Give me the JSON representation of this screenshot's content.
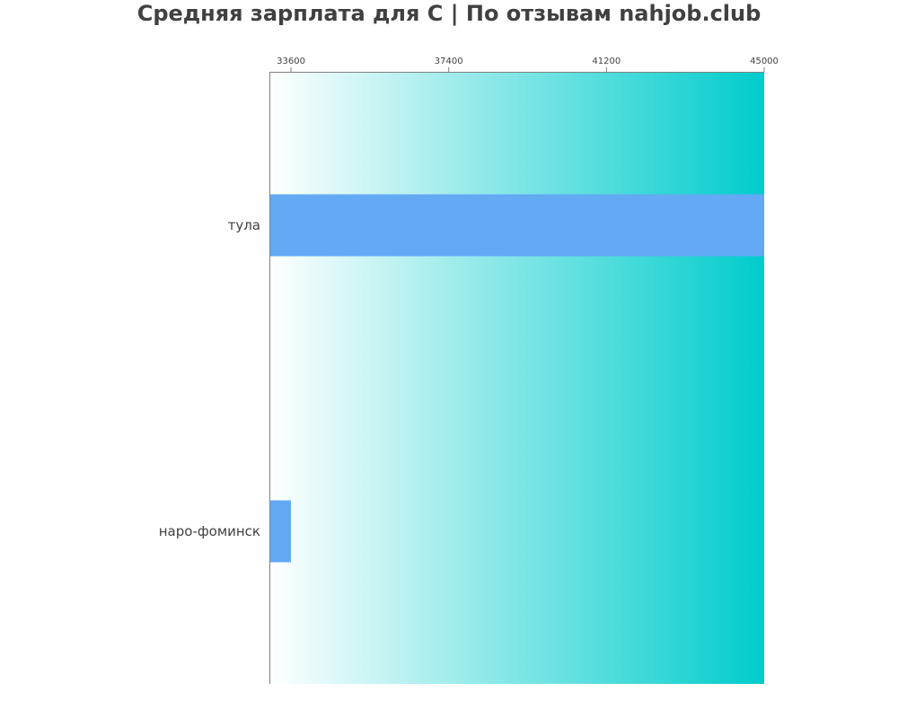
{
  "chart_data": {
    "type": "bar",
    "orientation": "horizontal",
    "title": "Средняя зарплата для C | По отзывам nahjob.club",
    "xlabel": "",
    "ylabel": "",
    "categories": [
      "тула",
      "наро-фоминск"
    ],
    "values": [
      45000,
      33600
    ],
    "xlim": [
      33080,
      45000
    ],
    "x_ticks": [
      "33600",
      "37400",
      "41200",
      "45000"
    ],
    "tick_values": [
      33600,
      37400,
      41200,
      45000
    ],
    "x_axis_position": "top",
    "grid": false,
    "legend": "none",
    "colors": {
      "bar": "#63a9f4",
      "background_start": "#ffffff",
      "background_end": "#00cccc",
      "axis": "#808080",
      "text": "#404040"
    }
  }
}
